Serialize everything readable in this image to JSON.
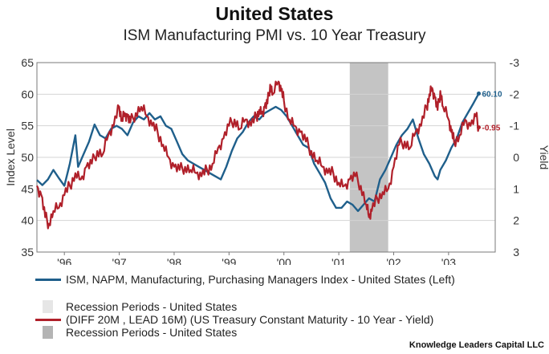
{
  "header": {
    "title": "United States",
    "subtitle": "ISM Manufacturing PMI vs. 10 Year Treasury"
  },
  "chart_data": {
    "type": "line",
    "title": "United States",
    "subtitle": "ISM Manufacturing PMI vs. 10 Year Treasury",
    "ylabel_left": "Index Level",
    "ylabel_right": "Yield",
    "ylim_left": [
      35,
      65
    ],
    "yticks_left": [
      "65",
      "60",
      "55",
      "50",
      "45",
      "40",
      "35"
    ],
    "ylim_right": [
      3,
      -3
    ],
    "yticks_right": [
      "-3",
      "-2",
      "-1",
      "0",
      "1",
      "2",
      "3"
    ],
    "xlim": [
      1995.5,
      2003.85
    ],
    "xticks": [
      {
        "label": "'96",
        "x": 1996.0
      },
      {
        "label": "'97",
        "x": 1997.0
      },
      {
        "label": "'98",
        "x": 1998.0
      },
      {
        "label": "'99",
        "x": 1999.0
      },
      {
        "label": "'00",
        "x": 2000.0
      },
      {
        "label": "'01",
        "x": 2001.0
      },
      {
        "label": "'02",
        "x": 2002.0
      },
      {
        "label": "'03",
        "x": 2003.0
      }
    ],
    "recession": {
      "start": 2001.2,
      "end": 2001.9
    },
    "series": [
      {
        "name": "ISM, NAPM, Manufacturing, Purchasing Managers Index - United States (Left)",
        "axis": "left",
        "color": "#1f5f8b",
        "end_label": "60.10",
        "points": [
          [
            1995.5,
            46.4
          ],
          [
            1995.6,
            45.6
          ],
          [
            1995.7,
            46.5
          ],
          [
            1995.8,
            48.0
          ],
          [
            1995.9,
            46.7
          ],
          [
            1996.0,
            45.5
          ],
          [
            1996.1,
            49.0
          ],
          [
            1996.2,
            53.5
          ],
          [
            1996.25,
            48.5
          ],
          [
            1996.35,
            50.5
          ],
          [
            1996.45,
            52.5
          ],
          [
            1996.55,
            55.2
          ],
          [
            1996.65,
            53.5
          ],
          [
            1996.75,
            53.0
          ],
          [
            1996.85,
            54.5
          ],
          [
            1996.95,
            55.0
          ],
          [
            1997.05,
            54.5
          ],
          [
            1997.15,
            53.5
          ],
          [
            1997.25,
            55.5
          ],
          [
            1997.35,
            56.5
          ],
          [
            1997.45,
            56.0
          ],
          [
            1997.55,
            57.0
          ],
          [
            1997.65,
            56.0
          ],
          [
            1997.75,
            56.5
          ],
          [
            1997.85,
            55.0
          ],
          [
            1997.95,
            54.5
          ],
          [
            1998.05,
            52.5
          ],
          [
            1998.15,
            50.5
          ],
          [
            1998.25,
            49.5
          ],
          [
            1998.35,
            49.0
          ],
          [
            1998.45,
            48.5
          ],
          [
            1998.55,
            48.0
          ],
          [
            1998.65,
            47.5
          ],
          [
            1998.75,
            47.0
          ],
          [
            1998.85,
            46.5
          ],
          [
            1998.95,
            48.5
          ],
          [
            1999.05,
            51.0
          ],
          [
            1999.15,
            53.0
          ],
          [
            1999.25,
            54.0
          ],
          [
            1999.35,
            55.5
          ],
          [
            1999.45,
            56.5
          ],
          [
            1999.55,
            56.0
          ],
          [
            1999.65,
            57.0
          ],
          [
            1999.75,
            57.5
          ],
          [
            1999.85,
            58.0
          ],
          [
            1999.95,
            57.5
          ],
          [
            2000.05,
            56.5
          ],
          [
            2000.15,
            55.0
          ],
          [
            2000.25,
            53.5
          ],
          [
            2000.35,
            52.0
          ],
          [
            2000.45,
            51.5
          ],
          [
            2000.55,
            49.0
          ],
          [
            2000.65,
            47.5
          ],
          [
            2000.75,
            46.0
          ],
          [
            2000.85,
            43.5
          ],
          [
            2000.95,
            42.0
          ],
          [
            2001.05,
            42.0
          ],
          [
            2001.15,
            43.0
          ],
          [
            2001.25,
            42.5
          ],
          [
            2001.35,
            41.5
          ],
          [
            2001.45,
            42.5
          ],
          [
            2001.55,
            43.5
          ],
          [
            2001.65,
            43.0
          ],
          [
            2001.75,
            46.5
          ],
          [
            2001.85,
            48.0
          ],
          [
            2001.95,
            50.0
          ],
          [
            2002.05,
            52.0
          ],
          [
            2002.15,
            53.5
          ],
          [
            2002.25,
            54.5
          ],
          [
            2002.35,
            56.0
          ],
          [
            2002.45,
            53.0
          ],
          [
            2002.55,
            50.5
          ],
          [
            2002.65,
            49.0
          ],
          [
            2002.75,
            47.0
          ],
          [
            2002.8,
            46.5
          ],
          [
            2002.85,
            48.0
          ],
          [
            2002.95,
            49.5
          ],
          [
            2003.05,
            51.5
          ],
          [
            2003.15,
            53.0
          ],
          [
            2003.25,
            55.5
          ],
          [
            2003.35,
            57.0
          ],
          [
            2003.45,
            58.5
          ],
          [
            2003.55,
            60.1
          ]
        ]
      },
      {
        "name": "(DIFF 20M , LEAD 16M) (US Treasury Constant Maturity - 10 Year - Yield)",
        "axis": "right",
        "color": "#b0202a",
        "end_label": "-0.95",
        "points": [
          [
            1995.5,
            0.9
          ],
          [
            1995.58,
            1.2
          ],
          [
            1995.65,
            1.9
          ],
          [
            1995.72,
            2.1
          ],
          [
            1995.8,
            1.7
          ],
          [
            1995.9,
            1.6
          ],
          [
            1996.0,
            1.2
          ],
          [
            1996.1,
            0.9
          ],
          [
            1996.2,
            0.5
          ],
          [
            1996.3,
            0.7
          ],
          [
            1996.4,
            0.3
          ],
          [
            1996.5,
            0.2
          ],
          [
            1996.6,
            -0.2
          ],
          [
            1996.7,
            -0.1
          ],
          [
            1996.8,
            -0.7
          ],
          [
            1996.9,
            -1.0
          ],
          [
            1997.0,
            -1.6
          ],
          [
            1997.05,
            -1.2
          ],
          [
            1997.1,
            -1.4
          ],
          [
            1997.15,
            -1.3
          ],
          [
            1997.2,
            -1.1
          ],
          [
            1997.3,
            -1.4
          ],
          [
            1997.4,
            -1.6
          ],
          [
            1997.5,
            -1.3
          ],
          [
            1997.6,
            -1.0
          ],
          [
            1997.7,
            -0.8
          ],
          [
            1997.8,
            -0.4
          ],
          [
            1997.9,
            0.0
          ],
          [
            1998.0,
            0.3
          ],
          [
            1998.1,
            0.4
          ],
          [
            1998.2,
            0.3
          ],
          [
            1998.3,
            0.4
          ],
          [
            1998.4,
            0.5
          ],
          [
            1998.5,
            0.6
          ],
          [
            1998.6,
            0.4
          ],
          [
            1998.7,
            0.2
          ],
          [
            1998.8,
            -0.3
          ],
          [
            1998.9,
            -0.6
          ],
          [
            1999.0,
            -1.0
          ],
          [
            1999.1,
            -1.2
          ],
          [
            1999.2,
            -0.9
          ],
          [
            1999.3,
            -1.2
          ],
          [
            1999.4,
            -1.0
          ],
          [
            1999.5,
            -1.3
          ],
          [
            1999.55,
            -1.5
          ],
          [
            1999.6,
            -1.4
          ],
          [
            1999.65,
            -1.6
          ],
          [
            1999.7,
            -1.7
          ],
          [
            1999.75,
            -2.3
          ],
          [
            1999.8,
            -2.0
          ],
          [
            1999.9,
            -2.4
          ],
          [
            1999.95,
            -2.1
          ],
          [
            2000.0,
            -1.8
          ],
          [
            2000.1,
            -1.2
          ],
          [
            2000.2,
            -1.0
          ],
          [
            2000.3,
            -0.8
          ],
          [
            2000.4,
            -0.5
          ],
          [
            2000.5,
            -0.2
          ],
          [
            2000.6,
            0.1
          ],
          [
            2000.7,
            0.3
          ],
          [
            2000.8,
            0.5
          ],
          [
            2000.9,
            0.5
          ],
          [
            2001.0,
            0.8
          ],
          [
            2001.1,
            0.9
          ],
          [
            2001.2,
            0.7
          ],
          [
            2001.3,
            0.6
          ],
          [
            2001.4,
            0.9
          ],
          [
            2001.5,
            1.5
          ],
          [
            2001.55,
            1.9
          ],
          [
            2001.6,
            1.7
          ],
          [
            2001.7,
            1.3
          ],
          [
            2001.8,
            1.1
          ],
          [
            2001.9,
            1.0
          ],
          [
            2002.0,
            0.3
          ],
          [
            2002.1,
            -0.4
          ],
          [
            2002.2,
            -0.5
          ],
          [
            2002.3,
            -0.3
          ],
          [
            2002.4,
            -0.8
          ],
          [
            2002.5,
            -1.0
          ],
          [
            2002.6,
            -1.6
          ],
          [
            2002.65,
            -2.0
          ],
          [
            2002.7,
            -2.2
          ],
          [
            2002.75,
            -1.9
          ],
          [
            2002.8,
            -1.5
          ],
          [
            2002.85,
            -2.1
          ],
          [
            2002.9,
            -1.6
          ],
          [
            2003.0,
            -1.2
          ],
          [
            2003.05,
            -0.8
          ],
          [
            2003.1,
            -0.5
          ],
          [
            2003.2,
            -0.7
          ],
          [
            2003.3,
            -1.2
          ],
          [
            2003.4,
            -1.0
          ],
          [
            2003.5,
            -1.3
          ],
          [
            2003.55,
            -0.95
          ]
        ]
      }
    ]
  },
  "legend": {
    "items": [
      {
        "label": "ISM, NAPM, Manufacturing, Purchasing Managers Index - United States (Left)",
        "color": "#1f5f8b",
        "kind": "line"
      },
      {
        "label": "Recession Periods - United States",
        "color": "#e6e6e6",
        "kind": "box"
      },
      {
        "label": "(DIFF 20M , LEAD 16M) (US Treasury Constant Maturity - 10 Year - Yield)",
        "color": "#b0202a",
        "kind": "line"
      },
      {
        "label": "Recession Periods - United States",
        "color": "#b4b4b4",
        "kind": "box"
      }
    ]
  },
  "footer": {
    "credit": "Knowledge Leaders Capital LLC"
  }
}
